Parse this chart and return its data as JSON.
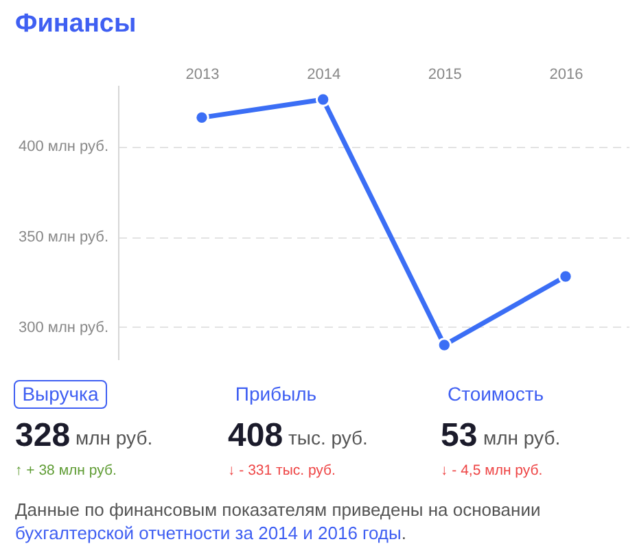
{
  "chart_data": {
    "type": "line",
    "title": "Финансы",
    "categories": [
      "2013",
      "2014",
      "2015",
      "2016"
    ],
    "series": [
      {
        "color": "#3b6ef5",
        "values": [
          416,
          426,
          290,
          328
        ]
      }
    ],
    "ylim": [
      282,
      434
    ],
    "yticks": [
      {
        "value": 300,
        "label": "300 млн руб."
      },
      {
        "value": 350,
        "label": "350 млн руб."
      },
      {
        "value": 400,
        "label": "400 млн руб."
      }
    ],
    "grid": "y",
    "marker": "circle",
    "line_style": "solid",
    "annotations": [
      "Выручка",
      "Прибыль",
      "Стоимость",
      "328",
      "млн руб.",
      "↑ + 38 млн руб.",
      "408",
      "тыс. руб.",
      "↓ - 331 тыс. руб.",
      "53",
      "млн руб.",
      "↓ - 4,5 млн руб.",
      "Данные по финансовым показателям приведены на основании",
      "бухгалтерской отчетности за 2014 и 2016 годы",
      "."
    ]
  }
}
